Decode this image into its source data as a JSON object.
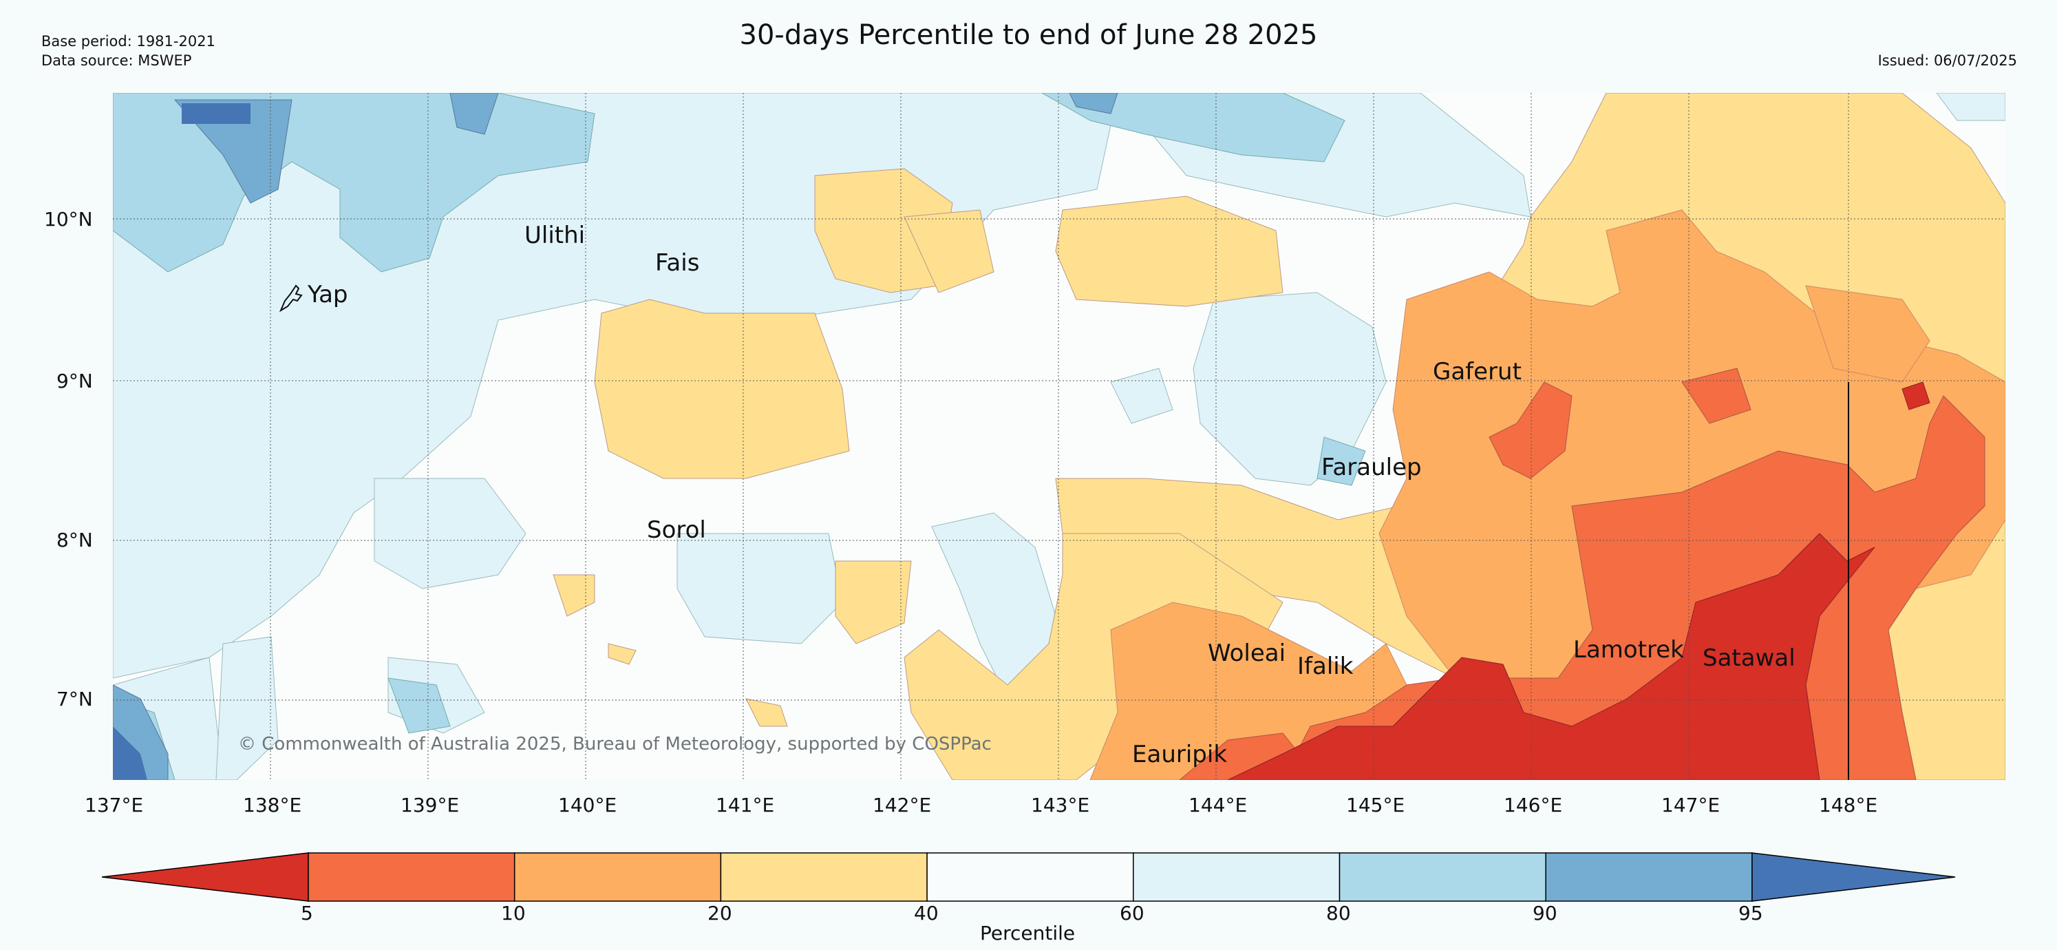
{
  "header": {
    "title": "30-days Percentile to end of June 28 2025",
    "base_period": "Base period: 1981-2021",
    "data_source": "Data source: MSWEP",
    "issued": "Issued: 06/07/2025"
  },
  "map": {
    "lat_labels": [
      "10°N",
      "9°N",
      "8°N",
      "7°N"
    ],
    "lon_labels": [
      "137°E",
      "138°E",
      "139°E",
      "140°E",
      "141°E",
      "142°E",
      "143°E",
      "144°E",
      "145°E",
      "146°E",
      "147°E",
      "148°E"
    ],
    "places": [
      "Yap",
      "Ulithi",
      "Fais",
      "Sorol",
      "Gaferut",
      "Faraulep",
      "Woleai",
      "Ifalik",
      "Eauripik",
      "Lamotrek",
      "Satawal"
    ],
    "copyright": "© Commonwealth of Australia 2025, Bureau of Meteorology, supported by COSPPac"
  },
  "colorbar": {
    "label": "Percentile",
    "ticks": [
      "5",
      "10",
      "20",
      "40",
      "60",
      "80",
      "90",
      "95"
    ],
    "colors": [
      "#d73027",
      "#f46d43",
      "#fdae61",
      "#fee090",
      "#f9fcfc",
      "#e0f3f8",
      "#abd9e9",
      "#74add1",
      "#4575b4"
    ]
  }
}
